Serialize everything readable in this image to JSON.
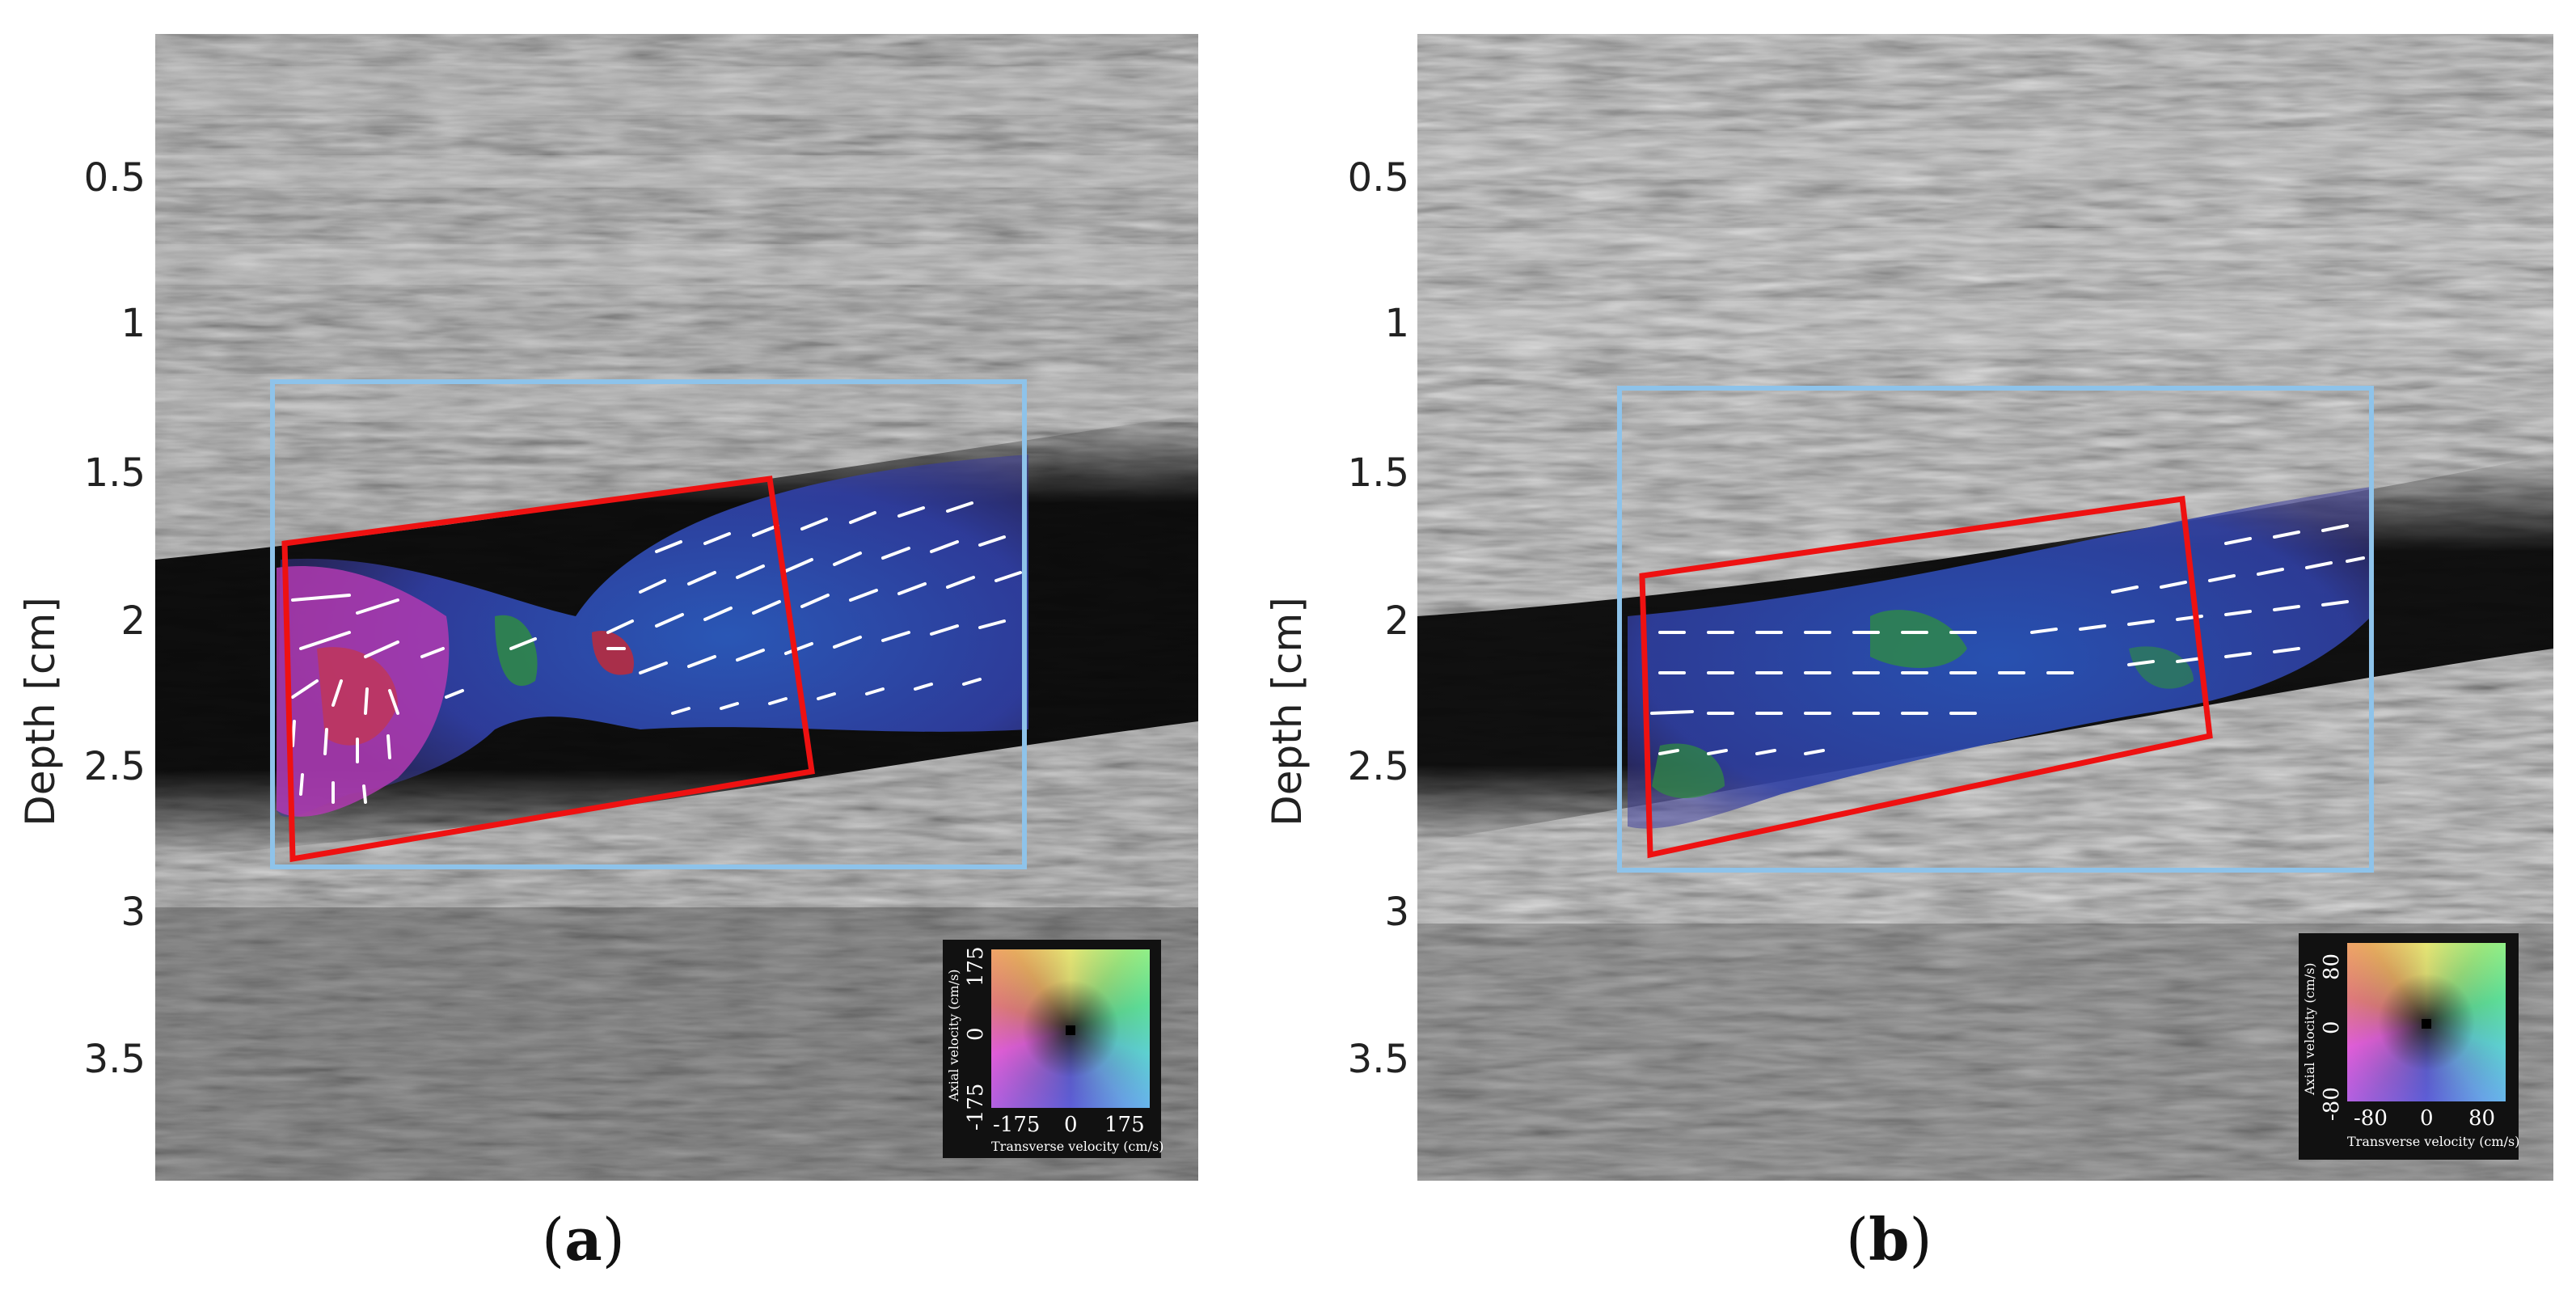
{
  "axis": {
    "ylabel": "Depth [cm]",
    "yticks": [
      "0.5",
      "1",
      "1.5",
      "2",
      "2.5",
      "3",
      "3.5"
    ]
  },
  "panels": [
    {
      "caption_open": "(",
      "caption_letter": "a",
      "caption_close": ")",
      "legend": {
        "ylabel": "Axial velocity (cm/s)",
        "xlabel": "Transverse velocity (cm/s)",
        "yticks": [
          "-175",
          "0",
          "175"
        ],
        "xticks": [
          "-175",
          "0",
          "175"
        ]
      }
    },
    {
      "caption_open": "(",
      "caption_letter": "b",
      "caption_close": ")",
      "legend": {
        "ylabel": "Axial velocity (cm/s)",
        "xlabel": "Transverse velocity (cm/s)",
        "yticks": [
          "-80",
          "0",
          "80"
        ],
        "xticks": [
          "-80",
          "0",
          "80"
        ]
      }
    }
  ],
  "colors": {
    "roi_box": "#8ec3ea",
    "beam_box": "#ee1111",
    "vector": "#ffffff",
    "flow_blue": "#3a4fb0",
    "flow_magenta": "#c03ab8",
    "flow_green": "#2f8f3f"
  }
}
